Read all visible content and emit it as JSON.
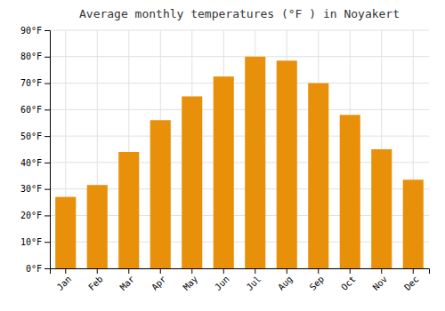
{
  "chart_data": {
    "type": "bar",
    "title": "Average monthly temperatures (°F ) in Noyakert",
    "categories": [
      "Jan",
      "Feb",
      "Mar",
      "Apr",
      "May",
      "Jun",
      "Jul",
      "Aug",
      "Sep",
      "Oct",
      "Nov",
      "Dec"
    ],
    "values": [
      27,
      31.5,
      44,
      56,
      65,
      72.5,
      80,
      78.5,
      70,
      58,
      45,
      33.5
    ],
    "color": "#E8900A",
    "ylim": [
      0,
      90
    ],
    "yticks": [
      {
        "value": 0,
        "label": "0°F"
      },
      {
        "value": 10,
        "label": "10°F"
      },
      {
        "value": 20,
        "label": "20°F"
      },
      {
        "value": 30,
        "label": "30°F"
      },
      {
        "value": 40,
        "label": "40°F"
      },
      {
        "value": 50,
        "label": "50°F"
      },
      {
        "value": 60,
        "label": "60°F"
      },
      {
        "value": 70,
        "label": "70°F"
      },
      {
        "value": 80,
        "label": "80°F"
      },
      {
        "value": 90,
        "label": "90°F"
      }
    ],
    "grid": true
  }
}
